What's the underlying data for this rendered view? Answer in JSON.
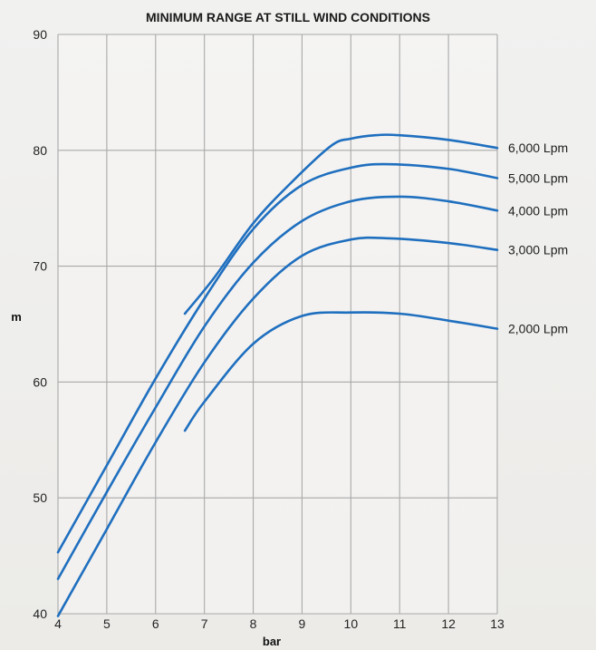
{
  "chart_data": {
    "type": "line",
    "title": "MINIMUM RANGE AT STILL WIND CONDITIONS",
    "xlabel": "bar",
    "ylabel": "m",
    "xlim": [
      4,
      13
    ],
    "ylim": [
      40,
      90
    ],
    "x_ticks": [
      "4",
      "5",
      "6",
      "7",
      "8",
      "9",
      "10",
      "11",
      "12",
      "13"
    ],
    "y_ticks": [
      "40",
      "50",
      "60",
      "70",
      "80",
      "90"
    ],
    "grid": true,
    "line_color": "#1f6fbf",
    "series": [
      {
        "name": "6,000 Lpm",
        "points": [
          [
            6.6,
            65.9
          ],
          [
            7.2,
            69.0
          ],
          [
            8.0,
            73.7
          ],
          [
            8.8,
            77.3
          ],
          [
            9.6,
            80.4
          ],
          [
            10.0,
            81.0
          ],
          [
            10.5,
            81.3
          ],
          [
            11.0,
            81.3
          ],
          [
            12.0,
            80.9
          ],
          [
            13.0,
            80.2
          ]
        ]
      },
      {
        "name": "5,000 Lpm",
        "points": [
          [
            4.0,
            45.3
          ],
          [
            5.0,
            52.8
          ],
          [
            6.0,
            60.3
          ],
          [
            7.0,
            67.2
          ],
          [
            8.0,
            73.2
          ],
          [
            9.0,
            77.0
          ],
          [
            10.0,
            78.5
          ],
          [
            10.8,
            78.8
          ],
          [
            12.0,
            78.4
          ],
          [
            13.0,
            77.6
          ]
        ]
      },
      {
        "name": "4,000 Lpm",
        "points": [
          [
            4.0,
            43.0
          ],
          [
            5.0,
            50.5
          ],
          [
            6.0,
            57.8
          ],
          [
            7.0,
            64.8
          ],
          [
            8.0,
            70.3
          ],
          [
            9.0,
            73.9
          ],
          [
            10.0,
            75.6
          ],
          [
            11.0,
            76.0
          ],
          [
            12.0,
            75.6
          ],
          [
            13.0,
            74.8
          ]
        ]
      },
      {
        "name": "3,000 Lpm",
        "points": [
          [
            4.0,
            39.8
          ],
          [
            5.0,
            47.3
          ],
          [
            6.0,
            54.8
          ],
          [
            7.0,
            61.7
          ],
          [
            8.0,
            67.2
          ],
          [
            9.0,
            70.9
          ],
          [
            10.0,
            72.3
          ],
          [
            10.8,
            72.4
          ],
          [
            12.0,
            72.0
          ],
          [
            13.0,
            71.4
          ]
        ]
      },
      {
        "name": "2,000 Lpm",
        "points": [
          [
            6.6,
            55.8
          ],
          [
            7.0,
            58.3
          ],
          [
            8.0,
            63.3
          ],
          [
            9.0,
            65.7
          ],
          [
            10.0,
            66.0
          ],
          [
            11.0,
            65.9
          ],
          [
            12.0,
            65.3
          ],
          [
            13.0,
            64.6
          ]
        ]
      }
    ]
  }
}
